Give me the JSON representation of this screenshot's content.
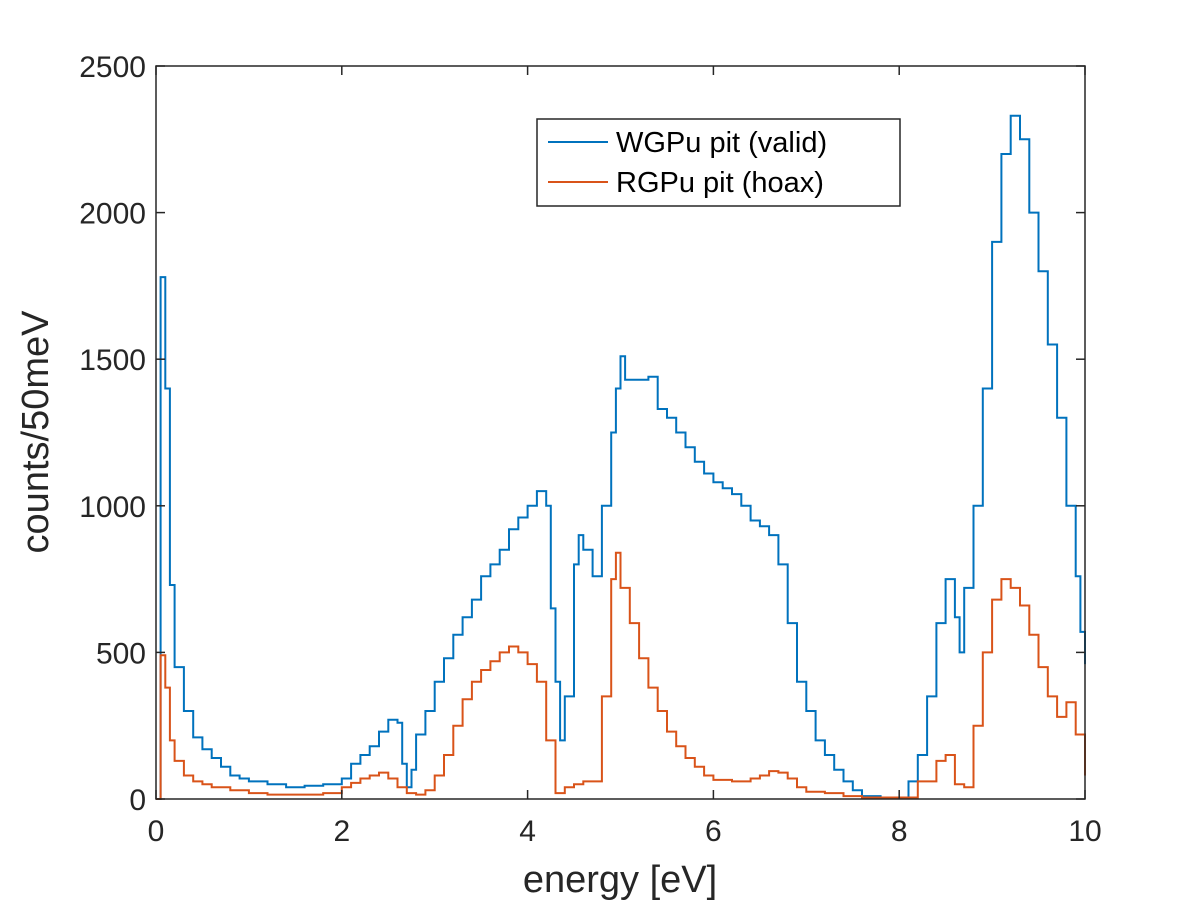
{
  "chart_data": {
    "type": "line",
    "style": "stairs",
    "title": "",
    "xlabel": "energy [eV]",
    "ylabel": "counts/50meV",
    "xlim": [
      0,
      10
    ],
    "ylim": [
      0,
      2500
    ],
    "xticks": [
      0,
      2,
      4,
      6,
      8,
      10
    ],
    "yticks": [
      0,
      500,
      1000,
      1500,
      2000,
      2500
    ],
    "xtick_labels": [
      "0",
      "2",
      "4",
      "6",
      "8",
      "10"
    ],
    "ytick_labels": [
      "0",
      "500",
      "1000",
      "1500",
      "2000",
      "2500"
    ],
    "grid": false,
    "legend_position": "top-right",
    "series": [
      {
        "name": "WGPu pit (valid)",
        "color": "#0072BD",
        "points": [
          [
            0,
            0
          ],
          [
            0.05,
            1780
          ],
          [
            0.1,
            1400
          ],
          [
            0.15,
            730
          ],
          [
            0.2,
            450
          ],
          [
            0.3,
            300
          ],
          [
            0.4,
            210
          ],
          [
            0.5,
            170
          ],
          [
            0.6,
            140
          ],
          [
            0.7,
            110
          ],
          [
            0.8,
            80
          ],
          [
            0.9,
            70
          ],
          [
            1.0,
            60
          ],
          [
            1.2,
            50
          ],
          [
            1.4,
            40
          ],
          [
            1.6,
            45
          ],
          [
            1.8,
            50
          ],
          [
            2.0,
            70
          ],
          [
            2.1,
            120
          ],
          [
            2.2,
            150
          ],
          [
            2.3,
            180
          ],
          [
            2.4,
            230
          ],
          [
            2.5,
            270
          ],
          [
            2.6,
            260
          ],
          [
            2.65,
            120
          ],
          [
            2.7,
            40
          ],
          [
            2.75,
            100
          ],
          [
            2.8,
            220
          ],
          [
            2.9,
            300
          ],
          [
            3.0,
            400
          ],
          [
            3.1,
            480
          ],
          [
            3.2,
            560
          ],
          [
            3.3,
            620
          ],
          [
            3.4,
            680
          ],
          [
            3.5,
            760
          ],
          [
            3.6,
            800
          ],
          [
            3.7,
            850
          ],
          [
            3.8,
            920
          ],
          [
            3.9,
            960
          ],
          [
            4.0,
            1000
          ],
          [
            4.1,
            1050
          ],
          [
            4.2,
            1000
          ],
          [
            4.25,
            650
          ],
          [
            4.3,
            400
          ],
          [
            4.35,
            200
          ],
          [
            4.4,
            350
          ],
          [
            4.5,
            800
          ],
          [
            4.55,
            900
          ],
          [
            4.6,
            850
          ],
          [
            4.7,
            760
          ],
          [
            4.8,
            1000
          ],
          [
            4.9,
            1250
          ],
          [
            4.95,
            1400
          ],
          [
            5.0,
            1510
          ],
          [
            5.05,
            1430
          ],
          [
            5.3,
            1440
          ],
          [
            5.4,
            1330
          ],
          [
            5.5,
            1300
          ],
          [
            5.6,
            1250
          ],
          [
            5.7,
            1200
          ],
          [
            5.8,
            1150
          ],
          [
            5.9,
            1110
          ],
          [
            6.0,
            1080
          ],
          [
            6.1,
            1060
          ],
          [
            6.2,
            1040
          ],
          [
            6.3,
            1000
          ],
          [
            6.4,
            950
          ],
          [
            6.5,
            930
          ],
          [
            6.6,
            900
          ],
          [
            6.7,
            800
          ],
          [
            6.8,
            600
          ],
          [
            6.9,
            400
          ],
          [
            7.0,
            300
          ],
          [
            7.1,
            200
          ],
          [
            7.2,
            150
          ],
          [
            7.3,
            100
          ],
          [
            7.4,
            60
          ],
          [
            7.5,
            30
          ],
          [
            7.6,
            10
          ],
          [
            7.8,
            5
          ],
          [
            8.0,
            5
          ],
          [
            8.1,
            60
          ],
          [
            8.2,
            150
          ],
          [
            8.3,
            350
          ],
          [
            8.4,
            600
          ],
          [
            8.5,
            750
          ],
          [
            8.6,
            620
          ],
          [
            8.65,
            500
          ],
          [
            8.7,
            720
          ],
          [
            8.8,
            1000
          ],
          [
            8.9,
            1400
          ],
          [
            9.0,
            1900
          ],
          [
            9.1,
            2200
          ],
          [
            9.2,
            2330
          ],
          [
            9.3,
            2250
          ],
          [
            9.4,
            2000
          ],
          [
            9.5,
            1800
          ],
          [
            9.6,
            1550
          ],
          [
            9.7,
            1300
          ],
          [
            9.8,
            1000
          ],
          [
            9.9,
            760
          ],
          [
            9.95,
            570
          ],
          [
            10.0,
            460
          ]
        ]
      },
      {
        "name": "RGPu pit (hoax)",
        "color": "#D95319",
        "points": [
          [
            0,
            0
          ],
          [
            0.05,
            490
          ],
          [
            0.1,
            380
          ],
          [
            0.15,
            200
          ],
          [
            0.2,
            130
          ],
          [
            0.3,
            80
          ],
          [
            0.4,
            60
          ],
          [
            0.5,
            50
          ],
          [
            0.6,
            40
          ],
          [
            0.8,
            30
          ],
          [
            1.0,
            20
          ],
          [
            1.2,
            15
          ],
          [
            1.5,
            15
          ],
          [
            1.8,
            20
          ],
          [
            2.0,
            40
          ],
          [
            2.1,
            55
          ],
          [
            2.2,
            70
          ],
          [
            2.3,
            80
          ],
          [
            2.4,
            90
          ],
          [
            2.5,
            70
          ],
          [
            2.6,
            40
          ],
          [
            2.7,
            20
          ],
          [
            2.8,
            15
          ],
          [
            2.9,
            30
          ],
          [
            3.0,
            80
          ],
          [
            3.1,
            150
          ],
          [
            3.2,
            250
          ],
          [
            3.3,
            340
          ],
          [
            3.4,
            400
          ],
          [
            3.5,
            440
          ],
          [
            3.6,
            470
          ],
          [
            3.7,
            500
          ],
          [
            3.8,
            520
          ],
          [
            3.9,
            500
          ],
          [
            4.0,
            460
          ],
          [
            4.1,
            400
          ],
          [
            4.2,
            200
          ],
          [
            4.3,
            20
          ],
          [
            4.4,
            40
          ],
          [
            4.5,
            50
          ],
          [
            4.6,
            60
          ],
          [
            4.7,
            60
          ],
          [
            4.8,
            350
          ],
          [
            4.9,
            750
          ],
          [
            4.95,
            840
          ],
          [
            5.0,
            720
          ],
          [
            5.1,
            600
          ],
          [
            5.2,
            480
          ],
          [
            5.3,
            380
          ],
          [
            5.4,
            300
          ],
          [
            5.5,
            230
          ],
          [
            5.6,
            180
          ],
          [
            5.7,
            140
          ],
          [
            5.8,
            110
          ],
          [
            5.9,
            80
          ],
          [
            6.0,
            65
          ],
          [
            6.2,
            60
          ],
          [
            6.4,
            70
          ],
          [
            6.5,
            80
          ],
          [
            6.6,
            95
          ],
          [
            6.7,
            90
          ],
          [
            6.8,
            70
          ],
          [
            6.9,
            40
          ],
          [
            7.0,
            25
          ],
          [
            7.2,
            20
          ],
          [
            7.4,
            10
          ],
          [
            7.6,
            5
          ],
          [
            8.0,
            5
          ],
          [
            8.2,
            60
          ],
          [
            8.4,
            130
          ],
          [
            8.5,
            150
          ],
          [
            8.6,
            50
          ],
          [
            8.7,
            40
          ],
          [
            8.8,
            250
          ],
          [
            8.9,
            500
          ],
          [
            9.0,
            680
          ],
          [
            9.1,
            750
          ],
          [
            9.2,
            720
          ],
          [
            9.3,
            660
          ],
          [
            9.4,
            560
          ],
          [
            9.5,
            450
          ],
          [
            9.6,
            350
          ],
          [
            9.7,
            280
          ],
          [
            9.8,
            330
          ],
          [
            9.9,
            220
          ],
          [
            10.0,
            80
          ]
        ]
      }
    ]
  }
}
